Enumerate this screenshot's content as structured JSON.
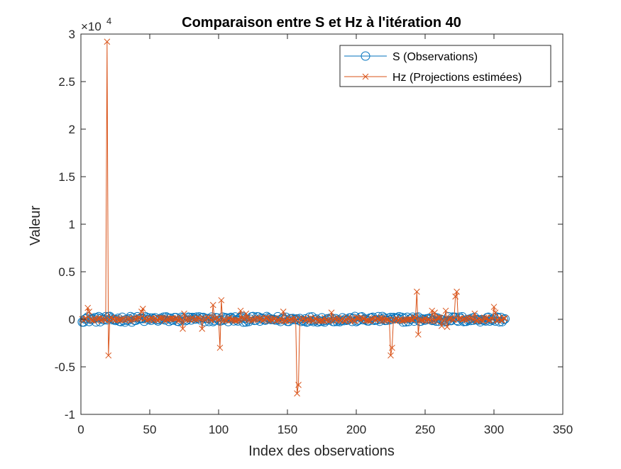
{
  "chart_data": {
    "type": "line",
    "title": "Comparaison entre S et Hz à l'itération 40",
    "xlabel": "Index des observations",
    "ylabel": "Valeur",
    "xlim": [
      0,
      350
    ],
    "ylim": [
      -10000,
      30000
    ],
    "y_exponent_label": "×10",
    "y_exponent_power": "4",
    "x_ticks": [
      0,
      50,
      100,
      150,
      200,
      250,
      300,
      350
    ],
    "x_tick_labels": [
      "0",
      "50",
      "100",
      "150",
      "200",
      "250",
      "300",
      "350"
    ],
    "y_ticks": [
      -10000,
      -5000,
      0,
      5000,
      10000,
      15000,
      20000,
      25000,
      30000
    ],
    "y_tick_labels": [
      "-1",
      "-0.5",
      "0",
      "0.5",
      "1",
      "1.5",
      "2",
      "2.5",
      "3"
    ],
    "grid": false,
    "legend_position": "top-right",
    "series": [
      {
        "name": "S (Observations)",
        "color": "#0072BD",
        "marker": "circle",
        "n": 308,
        "amplitude": 300
      },
      {
        "name": "Hz (Projections estimées)",
        "color": "#D95319",
        "marker": "x",
        "n": 308,
        "amplitude": 200,
        "spikes": [
          [
            5,
            1200
          ],
          [
            6,
            800
          ],
          [
            19,
            29200
          ],
          [
            20,
            -3800
          ],
          [
            44,
            800
          ],
          [
            45,
            1100
          ],
          [
            74,
            -1000
          ],
          [
            75,
            600
          ],
          [
            88,
            -1000
          ],
          [
            96,
            1500
          ],
          [
            101,
            -3000
          ],
          [
            102,
            2000
          ],
          [
            116,
            900
          ],
          [
            120,
            600
          ],
          [
            147,
            800
          ],
          [
            157,
            -7800
          ],
          [
            158,
            -6900
          ],
          [
            182,
            700
          ],
          [
            225,
            -3800
          ],
          [
            226,
            -3000
          ],
          [
            244,
            2900
          ],
          [
            245,
            -1600
          ],
          [
            255,
            900
          ],
          [
            257,
            700
          ],
          [
            262,
            -700
          ],
          [
            265,
            900
          ],
          [
            266,
            -800
          ],
          [
            272,
            2400
          ],
          [
            273,
            2900
          ],
          [
            286,
            600
          ],
          [
            300,
            1300
          ],
          [
            301,
            700
          ]
        ]
      }
    ]
  }
}
